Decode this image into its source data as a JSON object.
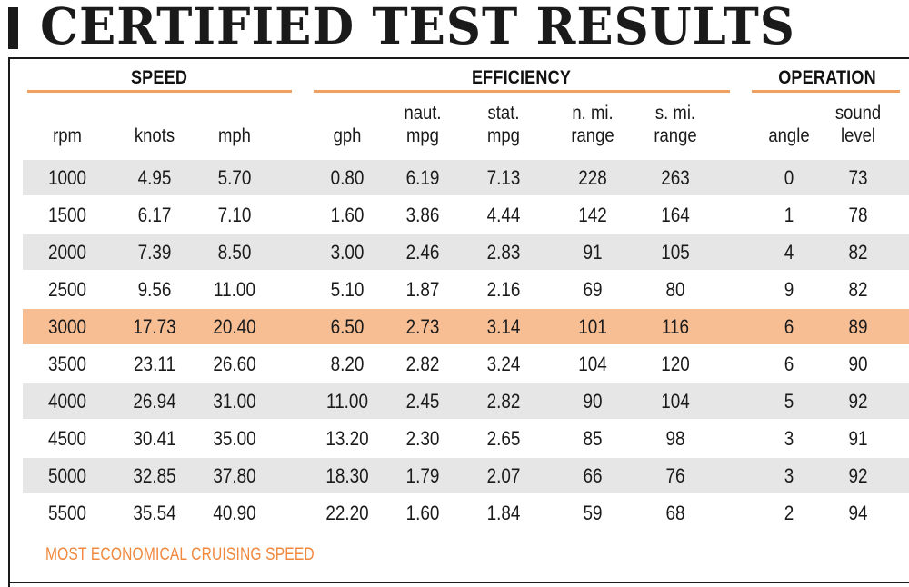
{
  "title": "CERTIFIED TEST RESULTS",
  "groups": {
    "speed": "SPEED",
    "efficiency": "EFFICIENCY",
    "operation": "OPERATION"
  },
  "columns": [
    {
      "key": "rpm",
      "line1": "",
      "line2": "rpm"
    },
    {
      "key": "knots",
      "line1": "",
      "line2": "knots"
    },
    {
      "key": "mph",
      "line1": "",
      "line2": "mph"
    },
    {
      "key": "gph",
      "line1": "",
      "line2": "gph"
    },
    {
      "key": "naut_mpg",
      "line1": "naut.",
      "line2": "mpg"
    },
    {
      "key": "stat_mpg",
      "line1": "stat.",
      "line2": "mpg"
    },
    {
      "key": "n_mi_range",
      "line1": "n. mi.",
      "line2": "range"
    },
    {
      "key": "s_mi_range",
      "line1": "s. mi.",
      "line2": "range"
    },
    {
      "key": "angle",
      "line1": "",
      "line2": "angle"
    },
    {
      "key": "sound_level",
      "line1": "sound",
      "line2": "level"
    }
  ],
  "rows": [
    [
      "1000",
      "4.95",
      "5.70",
      "0.80",
      "6.19",
      "7.13",
      "228",
      "263",
      "0",
      "73"
    ],
    [
      "1500",
      "6.17",
      "7.10",
      "1.60",
      "3.86",
      "4.44",
      "142",
      "164",
      "1",
      "78"
    ],
    [
      "2000",
      "7.39",
      "8.50",
      "3.00",
      "2.46",
      "2.83",
      "91",
      "105",
      "4",
      "82"
    ],
    [
      "2500",
      "9.56",
      "11.00",
      "5.10",
      "1.87",
      "2.16",
      "69",
      "80",
      "9",
      "82"
    ],
    [
      "3000",
      "17.73",
      "20.40",
      "6.50",
      "2.73",
      "3.14",
      "101",
      "116",
      "6",
      "89"
    ],
    [
      "3500",
      "23.11",
      "26.60",
      "8.20",
      "2.82",
      "3.24",
      "104",
      "120",
      "6",
      "90"
    ],
    [
      "4000",
      "26.94",
      "31.00",
      "11.00",
      "2.45",
      "2.82",
      "90",
      "104",
      "5",
      "92"
    ],
    [
      "4500",
      "30.41",
      "35.00",
      "13.20",
      "2.30",
      "2.65",
      "85",
      "98",
      "3",
      "91"
    ],
    [
      "5000",
      "32.85",
      "37.80",
      "18.30",
      "1.79",
      "2.07",
      "66",
      "76",
      "3",
      "92"
    ],
    [
      "5500",
      "35.54",
      "40.90",
      "22.20",
      "1.60",
      "1.84",
      "59",
      "68",
      "2",
      "94"
    ]
  ],
  "highlight_row": 4,
  "footnote": "MOST ECONOMICAL CRUISING SPEED",
  "colors": {
    "highlight": "#f7be94",
    "accent_line": "#f0a060",
    "footnote": "#f0883e",
    "row_shade": "#e6e6e6"
  }
}
